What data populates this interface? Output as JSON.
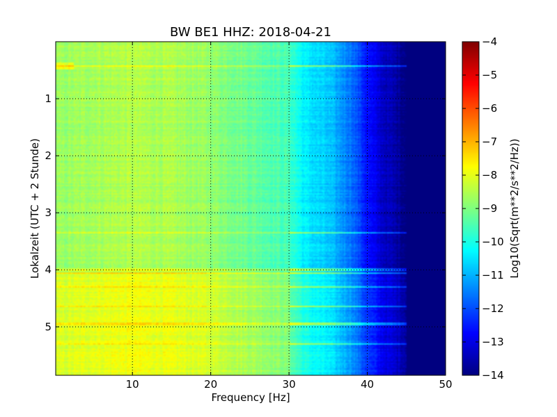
{
  "chart_data": {
    "type": "heatmap",
    "title": "BW BE1 HHZ: 2018-04-21",
    "xlabel": "Frequency [Hz]",
    "ylabel": "Lokalzeit (UTC + 2 Stunde)",
    "xlim": [
      0.2,
      50
    ],
    "ylim": [
      5.85,
      0.0
    ],
    "x_ticks": [
      10,
      20,
      30,
      40,
      50
    ],
    "x_tick_labels": [
      "10",
      "20",
      "30",
      "40",
      "50"
    ],
    "y_ticks": [
      1,
      2,
      3,
      4,
      5
    ],
    "y_tick_labels": [
      "1",
      "2",
      "3",
      "4",
      "5"
    ],
    "grid": true,
    "colormap": "jet",
    "colorbar": {
      "label": "Log10(Sqrt(m**2/s**2/Hz))",
      "range": [
        -14,
        -4
      ],
      "ticks": [
        -4,
        -5,
        -6,
        -7,
        -8,
        -9,
        -10,
        -11,
        -12,
        -13,
        -14
      ],
      "tick_labels": [
        "−4",
        "−5",
        "−6",
        "−7",
        "−8",
        "−9",
        "−10",
        "−11",
        "−12",
        "−13",
        "−14"
      ]
    },
    "spectral_profile": {
      "frequency_hz": [
        0.2,
        5,
        10,
        15,
        20,
        25,
        30,
        32,
        35,
        38,
        40,
        42,
        44,
        45,
        50
      ],
      "level_log10": [
        -8.8,
        -8.6,
        -8.5,
        -8.6,
        -8.8,
        -9.2,
        -9.6,
        -10.4,
        -10.8,
        -11.6,
        -12.6,
        -13.3,
        -13.7,
        -14.0,
        -14.0
      ]
    },
    "time_features": [
      {
        "time_h": 0.42,
        "note": "strong low-frequency band near 1 Hz"
      },
      {
        "time_h": 3.35,
        "note": "narrow horizontal line"
      },
      {
        "time_h": 4.0,
        "note": "strong broadband horizontal line"
      },
      {
        "time_h": 4.05,
        "note": "start of elevated amplitude period"
      },
      {
        "time_h": 4.3,
        "note": "horizontal line"
      },
      {
        "time_h": 4.65,
        "note": "horizontal line"
      },
      {
        "time_h": 4.95,
        "note": "strong horizontal line"
      },
      {
        "time_h": 5.3,
        "note": "horizontal line"
      }
    ],
    "elevated_period_h": [
      4.05,
      5.85
    ],
    "elevated_offset_log10": 0.6
  }
}
